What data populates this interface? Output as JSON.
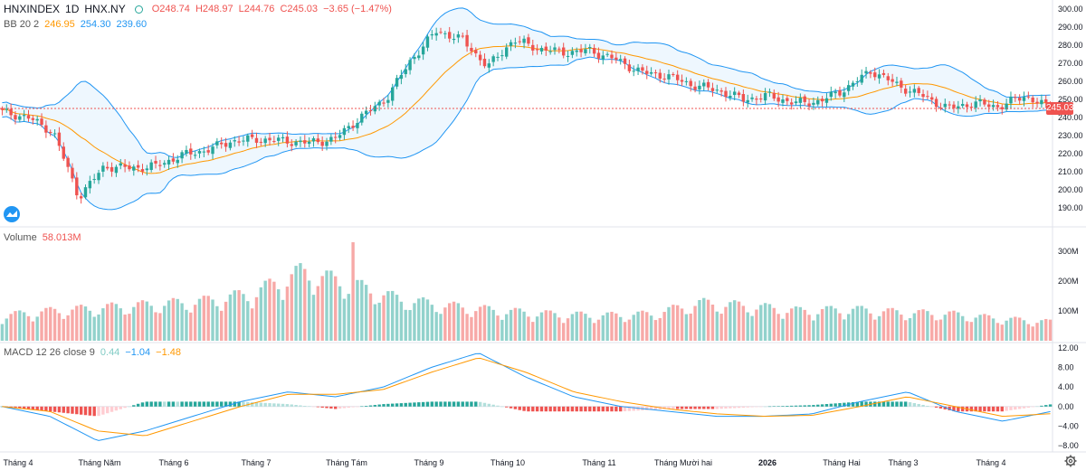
{
  "header": {
    "symbol": "HNXINDEX",
    "interval": "1D",
    "exchange": "HNX.NY",
    "ohlc": {
      "o": "O248.74",
      "h": "H248.97",
      "l": "L244.76",
      "c": "C245.03",
      "chg": "−3.65 (−1.47%)"
    }
  },
  "bb": {
    "label": "BB 20 2",
    "basis": "246.95",
    "upper": "254.30",
    "lower": "239.60"
  },
  "volume": {
    "label": "Volume",
    "value": "58.013M"
  },
  "macd": {
    "label": "MACD 12 26 close 9",
    "hist": "0.44",
    "macd": "−1.04",
    "signal": "−1.48"
  },
  "last_price_tag": "245.03",
  "icons": {
    "logo": "tradingview-logo-icon",
    "settings": "gear-icon",
    "visibility": "circle-toggle-icon"
  },
  "colors": {
    "up": "#26a69a",
    "down": "#ef5350",
    "bb_band": "#2196f3",
    "bb_basis": "#ff9800",
    "macd_line": "#2196f3",
    "signal_line": "#ff9800"
  },
  "chart_data": [
    {
      "type": "candlestick",
      "title": "HNXINDEX 1D HNX.NY",
      "x_labels": [
        "Tháng 4",
        "Tháng Năm",
        "Tháng 6",
        "Tháng 7",
        "Tháng Tám",
        "Tháng 9",
        "Tháng 10",
        "Tháng 11",
        "Tháng Mười hai",
        "2026",
        "Tháng Hai",
        "Tháng 3",
        "Tháng 4"
      ],
      "y_ticks": [
        "300.00",
        "290.00",
        "280.00",
        "270.00",
        "260.00",
        "250.00",
        "240.00",
        "230.00",
        "220.00",
        "210.00",
        "200.00",
        "190.00"
      ],
      "ylim": [
        185,
        301
      ],
      "close_path": [
        243,
        240,
        232,
        196,
        213,
        212,
        213,
        219,
        222,
        227,
        228,
        227,
        226,
        228,
        240,
        250,
        272,
        288,
        283,
        268,
        283,
        278,
        276,
        277,
        272,
        265,
        263,
        258,
        255,
        250,
        252,
        248,
        249,
        256,
        266,
        258,
        252,
        245,
        248,
        246,
        252,
        245
      ],
      "last_close": 245.03
    },
    {
      "type": "bar",
      "title": "Volume",
      "y_ticks": [
        "300M",
        "200M",
        "100M"
      ],
      "ylim": [
        0,
        330
      ],
      "profile_millions": [
        80,
        95,
        105,
        115,
        125,
        150,
        220,
        180,
        130,
        110,
        95,
        85,
        80,
        85,
        120,
        110,
        95,
        100,
        90,
        85,
        70,
        60
      ]
    },
    {
      "type": "line",
      "title": "MACD 12 26 close 9",
      "y_ticks": [
        "12.00",
        "8.00",
        "4.00",
        "0.00",
        "−4.00",
        "−8.00"
      ],
      "ylim": [
        -9.5,
        12.5
      ],
      "macd_path": [
        0,
        -2,
        -7,
        -5,
        -2,
        1,
        3,
        2,
        4,
        8,
        11,
        6,
        2,
        0,
        -1,
        -2,
        -2,
        -1.5,
        1,
        3,
        -1,
        -3,
        -1.04
      ],
      "signal_path": [
        0,
        -1,
        -5,
        -6,
        -3,
        0,
        2.5,
        2.5,
        3.5,
        7,
        10,
        7,
        3,
        1,
        -0.5,
        -1.5,
        -2,
        -1.8,
        0,
        2,
        0,
        -2,
        -1.48
      ]
    }
  ]
}
